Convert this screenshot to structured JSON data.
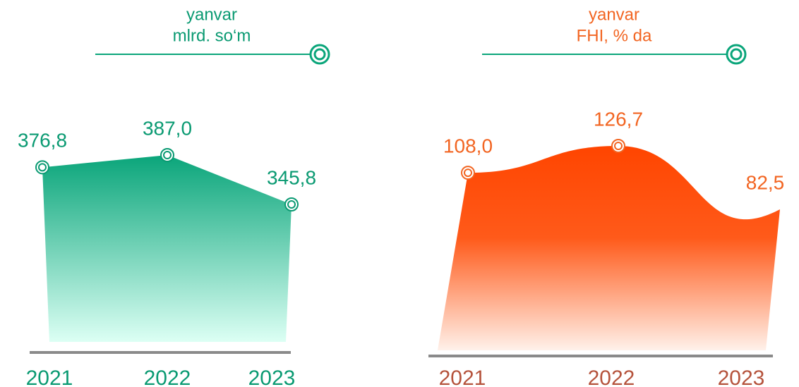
{
  "chart_data": [
    {
      "type": "area",
      "title": "yanvar",
      "subtitle": "mlrd. so‘m",
      "categories": [
        "2021",
        "2022",
        "2023"
      ],
      "values": [
        376.8,
        387.0,
        345.8
      ],
      "value_labels": [
        "376,8",
        "387,0",
        "345,8"
      ],
      "color": "#0aa57a",
      "label_color": "#0a9a72",
      "category_color": "#0a9a72",
      "smooth": false
    },
    {
      "type": "area",
      "title": "yanvar",
      "subtitle": "FHI, % da",
      "categories": [
        "2021",
        "2022",
        "2023"
      ],
      "values": [
        108.0,
        126.7,
        82.5
      ],
      "value_labels": [
        "108,0",
        "126,7",
        "82,5"
      ],
      "color": "#ff4500",
      "label_color": "#f26522",
      "category_color": "#b5533c",
      "smooth": true
    }
  ]
}
